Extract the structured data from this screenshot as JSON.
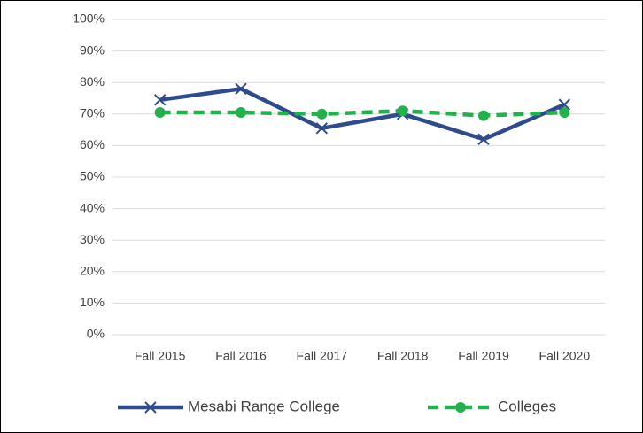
{
  "chart_data": {
    "type": "line",
    "categories": [
      "Fall 2015",
      "Fall 2016",
      "Fall 2017",
      "Fall 2018",
      "Fall 2019",
      "Fall 2020"
    ],
    "series": [
      {
        "name": "Mesabi Range College",
        "color": "#2f4b8e",
        "marker": "x",
        "dashed": false,
        "values": [
          74.5,
          78,
          65.5,
          70,
          62,
          73
        ]
      },
      {
        "name": "Colleges",
        "color": "#22b14c",
        "marker": "circle",
        "dashed": true,
        "values": [
          70.5,
          70.5,
          70,
          71,
          69.5,
          70.5
        ]
      }
    ],
    "ylim": [
      0,
      100
    ],
    "yticks": [
      {
        "value": 0,
        "label": "0%"
      },
      {
        "value": 10,
        "label": "10%"
      },
      {
        "value": 20,
        "label": "20%"
      },
      {
        "value": 30,
        "label": "30%"
      },
      {
        "value": 40,
        "label": "40%"
      },
      {
        "value": 50,
        "label": "50%"
      },
      {
        "value": 60,
        "label": "60%"
      },
      {
        "value": 70,
        "label": "70%"
      },
      {
        "value": 80,
        "label": "80%"
      },
      {
        "value": 90,
        "label": "90%"
      },
      {
        "value": 100,
        "label": "100%"
      }
    ],
    "grid": true,
    "legend": "bottom"
  }
}
